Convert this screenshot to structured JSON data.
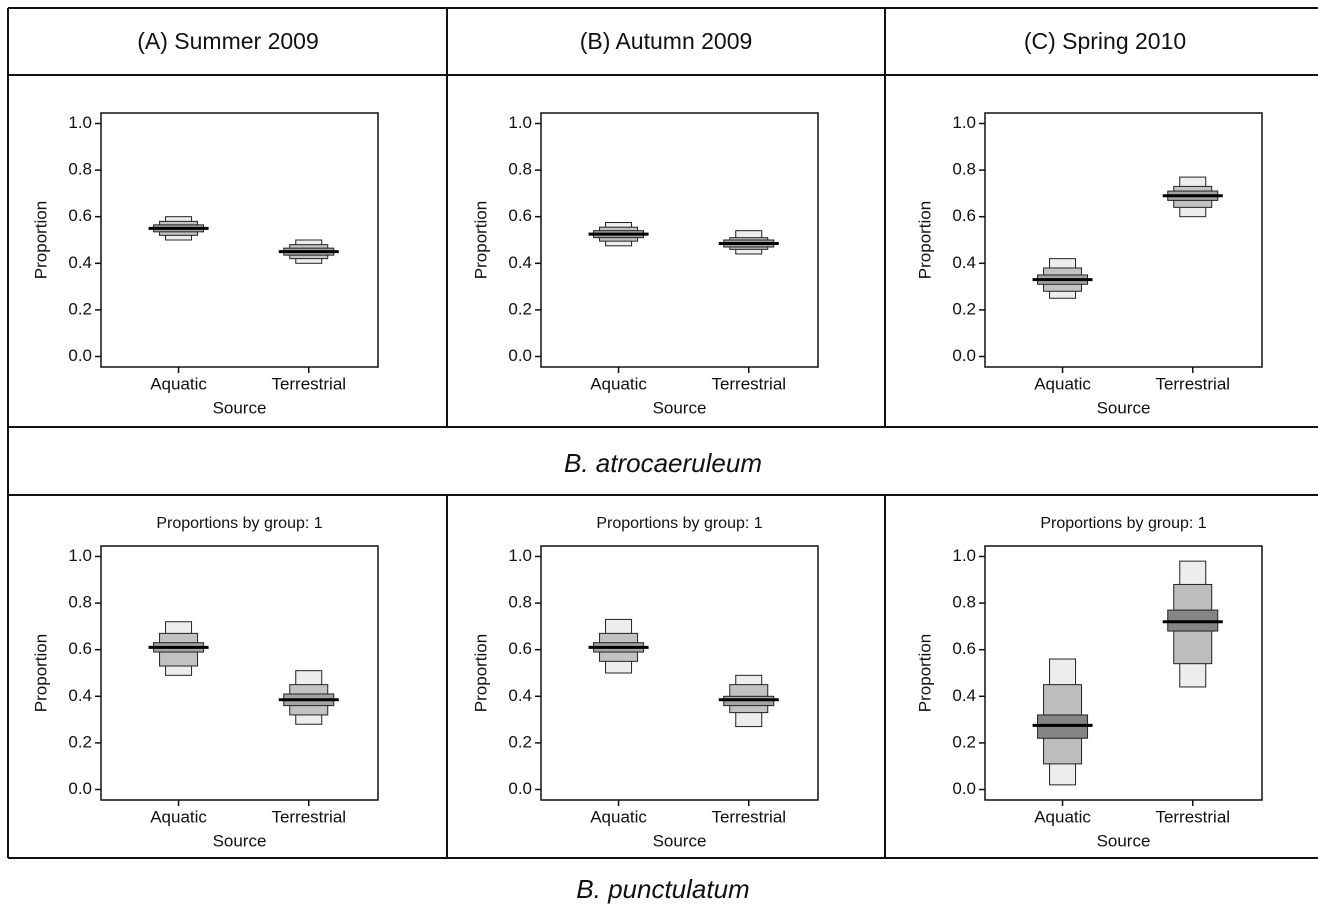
{
  "columns": [
    "(A) Summer 2009",
    "(B) Autumn 2009",
    "(C) Spring 2010"
  ],
  "rows": [
    "B. atrocaeruleum",
    "B. punctulatum"
  ],
  "chart_data": [
    {
      "type": "interval",
      "xlabel": "Source",
      "ylabel": "Proportion",
      "categories": [
        "Aquatic",
        "Terrestrial"
      ],
      "ylim": [
        -0.045,
        1.045
      ],
      "yticks": [
        {
          "value": 0,
          "label": "0.0"
        },
        0.2,
        0.4,
        0.6,
        0.8,
        {
          "value": 1,
          "label": "1.0"
        }
      ],
      "median": [
        0.55,
        0.45
      ],
      "intervals": [
        {
          "color": "#ededed",
          "low": [
            0.5,
            0.4
          ],
          "high": [
            0.6,
            0.5
          ]
        },
        {
          "color": "#c2c2c2",
          "low": [
            0.52,
            0.42
          ],
          "high": [
            0.58,
            0.48
          ]
        },
        {
          "color": "#a3a3a3",
          "low": [
            0.535,
            0.435
          ],
          "high": [
            0.565,
            0.465
          ]
        }
      ]
    },
    {
      "type": "interval",
      "xlabel": "Source",
      "ylabel": "Proportion",
      "categories": [
        "Aquatic",
        "Terrestrial"
      ],
      "ylim": [
        -0.045,
        1.045
      ],
      "yticks": [
        {
          "value": 0,
          "label": "0.0"
        },
        0.2,
        0.4,
        0.6,
        0.8,
        {
          "value": 1,
          "label": "1.0"
        }
      ],
      "median": [
        0.525,
        0.485
      ],
      "intervals": [
        {
          "color": "#ededed",
          "low": [
            0.475,
            0.44
          ],
          "high": [
            0.575,
            0.54
          ]
        },
        {
          "color": "#c2c2c2",
          "low": [
            0.495,
            0.46
          ],
          "high": [
            0.555,
            0.51
          ]
        },
        {
          "color": "#a3a3a3",
          "low": [
            0.51,
            0.47
          ],
          "high": [
            0.54,
            0.5
          ]
        }
      ]
    },
    {
      "type": "interval",
      "xlabel": "Source",
      "ylabel": "Proportion",
      "categories": [
        "Aquatic",
        "Terrestrial"
      ],
      "ylim": [
        -0.045,
        1.045
      ],
      "yticks": [
        {
          "value": 0,
          "label": "0.0"
        },
        0.2,
        0.4,
        0.6,
        0.8,
        {
          "value": 1,
          "label": "1.0"
        }
      ],
      "median": [
        0.33,
        0.69
      ],
      "intervals": [
        {
          "color": "#ededed",
          "low": [
            0.25,
            0.6
          ],
          "high": [
            0.42,
            0.77
          ]
        },
        {
          "color": "#c2c2c2",
          "low": [
            0.28,
            0.64
          ],
          "high": [
            0.38,
            0.73
          ]
        },
        {
          "color": "#a3a3a3",
          "low": [
            0.31,
            0.67
          ],
          "high": [
            0.35,
            0.71
          ]
        }
      ]
    },
    {
      "type": "interval",
      "title": "Proportions by group: 1",
      "xlabel": "Source",
      "ylabel": "Proportion",
      "categories": [
        "Aquatic",
        "Terrestrial"
      ],
      "ylim": [
        -0.045,
        1.045
      ],
      "yticks": [
        {
          "value": 0,
          "label": "0.0"
        },
        0.2,
        0.4,
        0.6,
        0.8,
        {
          "value": 1,
          "label": "1.0"
        }
      ],
      "median": [
        0.61,
        0.385
      ],
      "intervals": [
        {
          "color": "#ededed",
          "low": [
            0.49,
            0.28
          ],
          "high": [
            0.72,
            0.51
          ]
        },
        {
          "color": "#c2c2c2",
          "low": [
            0.53,
            0.32
          ],
          "high": [
            0.67,
            0.45
          ]
        },
        {
          "color": "#a3a3a3",
          "low": [
            0.59,
            0.36
          ],
          "high": [
            0.63,
            0.41
          ]
        }
      ]
    },
    {
      "type": "interval",
      "title": "Proportions by group: 1",
      "xlabel": "Source",
      "ylabel": "Proportion",
      "categories": [
        "Aquatic",
        "Terrestrial"
      ],
      "ylim": [
        -0.045,
        1.045
      ],
      "yticks": [
        {
          "value": 0,
          "label": "0.0"
        },
        0.2,
        0.4,
        0.6,
        0.8,
        {
          "value": 1,
          "label": "1.0"
        }
      ],
      "median": [
        0.61,
        0.385
      ],
      "intervals": [
        {
          "color": "#ededed",
          "low": [
            0.5,
            0.27
          ],
          "high": [
            0.73,
            0.49
          ]
        },
        {
          "color": "#c2c2c2",
          "low": [
            0.55,
            0.33
          ],
          "high": [
            0.67,
            0.45
          ]
        },
        {
          "color": "#a3a3a3",
          "low": [
            0.59,
            0.36
          ],
          "high": [
            0.63,
            0.4
          ]
        }
      ]
    },
    {
      "type": "interval",
      "title": "Proportions by group: 1",
      "xlabel": "Source",
      "ylabel": "Proportion",
      "categories": [
        "Aquatic",
        "Terrestrial"
      ],
      "ylim": [
        -0.045,
        1.045
      ],
      "yticks": [
        {
          "value": 0,
          "label": "0.0"
        },
        0.2,
        0.4,
        0.6,
        0.8,
        {
          "value": 1,
          "label": "1.0"
        }
      ],
      "median": [
        0.275,
        0.72
      ],
      "intervals": [
        {
          "color": "#ededed",
          "low": [
            0.02,
            0.44
          ],
          "high": [
            0.56,
            0.98
          ]
        },
        {
          "color": "#bdbdbd",
          "low": [
            0.11,
            0.54
          ],
          "high": [
            0.45,
            0.88
          ]
        },
        {
          "color": "#858585",
          "low": [
            0.22,
            0.68
          ],
          "high": [
            0.32,
            0.77
          ]
        }
      ]
    }
  ]
}
